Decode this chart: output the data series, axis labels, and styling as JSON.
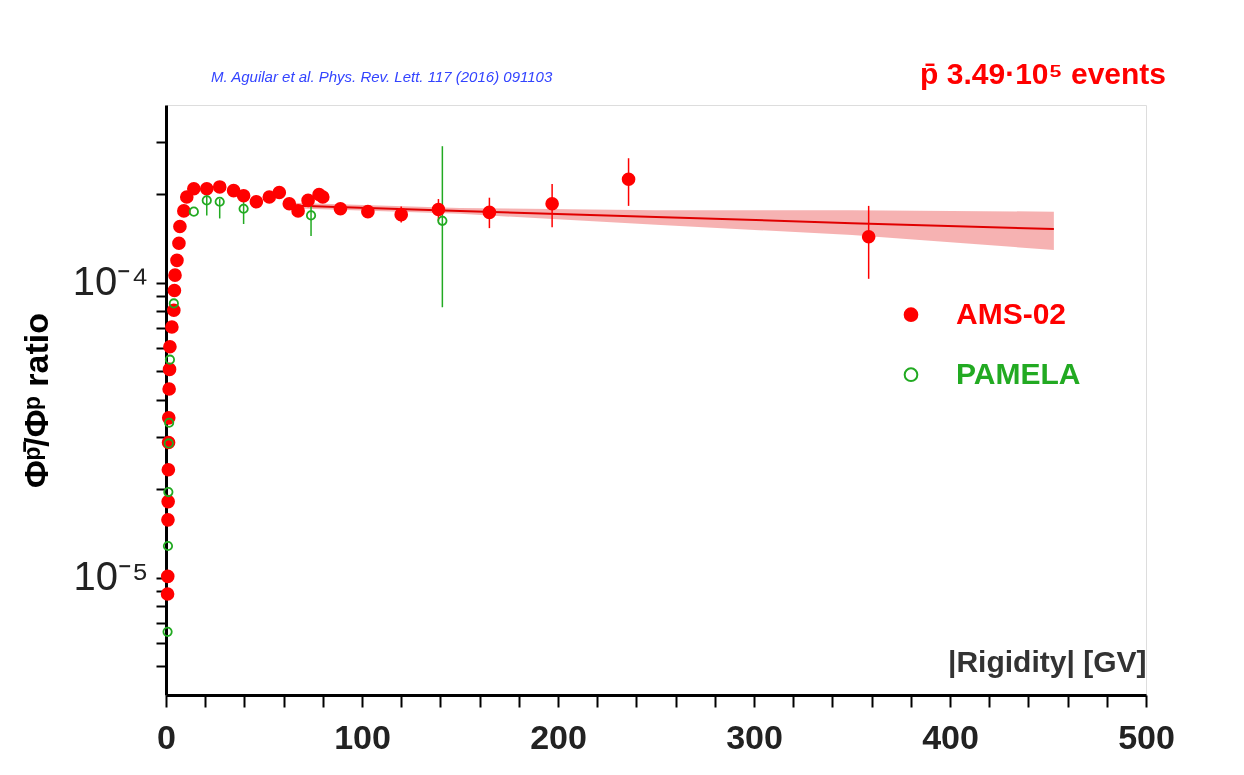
{
  "chart_data": {
    "type": "scatter",
    "xlabel": "|Rigidity| [GV]",
    "ylabel": "Φᵖ̄/Φᵖ ratio",
    "annotations": [
      "M. Aguilar et al. Phys. Rev. Lett. 117 (2016) 091103",
      "p̄  3.49·10⁵ events"
    ],
    "xlim": [
      0,
      500
    ],
    "xticks": [
      0,
      {
        "value": 20,
        "label": null
      },
      {
        "value": 40,
        "label": null
      },
      {
        "value": 60,
        "label": null
      },
      {
        "value": 80,
        "label": null
      },
      100,
      {
        "value": 120,
        "label": null
      },
      {
        "value": 140,
        "label": null
      },
      {
        "value": 160,
        "label": null
      },
      {
        "value": 180,
        "label": null
      },
      200,
      {
        "value": 220,
        "label": null
      },
      {
        "value": 240,
        "label": null
      },
      {
        "value": 260,
        "label": null
      },
      {
        "value": 280,
        "label": null
      },
      300,
      {
        "value": 320,
        "label": null
      },
      {
        "value": 340,
        "label": null
      },
      {
        "value": 360,
        "label": null
      },
      {
        "value": 380,
        "label": null
      },
      400,
      {
        "value": 420,
        "label": null
      },
      {
        "value": 440,
        "label": null
      },
      {
        "value": 460,
        "label": null
      },
      {
        "value": 480,
        "label": null
      },
      500
    ],
    "ylim": [
      4e-06,
      0.0004
    ],
    "yticks": [
      {
        "value": 5e-06,
        "label": null
      },
      {
        "value": 6e-06,
        "label": null
      },
      {
        "value": 7e-06,
        "label": null
      },
      {
        "value": 8e-06,
        "label": null
      },
      {
        "value": 9e-06,
        "label": null
      },
      {
        "value": 1e-05,
        "label": "10⁻⁵"
      },
      {
        "value": 2e-05,
        "label": null
      },
      {
        "value": 3e-05,
        "label": null
      },
      {
        "value": 4e-05,
        "label": null
      },
      {
        "value": 5e-05,
        "label": null
      },
      {
        "value": 6e-05,
        "label": null
      },
      {
        "value": 7e-05,
        "label": null
      },
      {
        "value": 8e-05,
        "label": null
      },
      {
        "value": 9e-05,
        "label": null
      },
      {
        "value": 0.0001,
        "label": "10⁻⁴"
      },
      {
        "value": 0.0002,
        "label": null
      },
      {
        "value": 0.0003,
        "label": null
      }
    ],
    "log": "y",
    "legend": "right",
    "series": [
      {
        "name": "AMS-02",
        "marker": "circle",
        "color": "#ff0000",
        "x": [
          0.8,
          0.9,
          1.0,
          1.1,
          1.2,
          1.3,
          1.4,
          1.6,
          1.8,
          2.0,
          3.0,
          4.0,
          4.3,
          4.6,
          5.6,
          6.6,
          7.1,
          9.1,
          10.6,
          14.2,
          20.8,
          27.4,
          34.5,
          39.6,
          46.1,
          52.7,
          57.8,
          62.9,
          67.4,
          72.5,
          78.1,
          80,
          89,
          103,
          120,
          139,
          165,
          197,
          236,
          358.5
        ],
        "values": [
          8.8e-06,
          1.01e-05,
          1.57e-05,
          1.81e-05,
          2.32e-05,
          2.87e-05,
          3.48e-05,
          4.36e-05,
          5.08e-05,
          6.06e-05,
          7.07e-05,
          8.06e-05,
          9.4e-05,
          0.000106,
          0.000119,
          0.000136,
          0.000155,
          0.000175,
          0.000195,
          0.000208,
          0.000208,
          0.000211,
          0.000205,
          0.000197,
          0.000188,
          0.000195,
          0.000202,
          0.000185,
          0.000175,
          0.00019,
          0.000199,
          0.000195,
          0.000178,
          0.000174,
          0.00017,
          0.000177,
          0.000173,
          0.000185,
          0.000224,
          0.000143
        ],
        "errors": [
          null,
          null,
          null,
          null,
          null,
          null,
          null,
          null,
          null,
          null,
          null,
          null,
          null,
          null,
          null,
          null,
          null,
          null,
          null,
          null,
          null,
          null,
          null,
          null,
          null,
          null,
          null,
          null,
          null,
          null,
          null,
          null,
          null,
          [
            0.000166,
            0.000182
          ],
          [
            0.00016,
            0.000181
          ],
          [
            0.000162,
            0.000192
          ],
          [
            0.000153,
            0.000194
          ],
          [
            0.000154,
            0.000216
          ],
          [
            0.000182,
            0.000264
          ],
          [
            0.000103,
            0.000182
          ]
        ]
      },
      {
        "name": "PAMELA",
        "marker": "circle",
        "color": "#22aa22",
        "x": [
          0.8,
          1.0,
          1.2,
          1.4,
          1.6,
          2.0,
          4.0,
          14.2,
          20.8,
          27.4,
          39.6,
          74,
          141
        ],
        "values": [
          6.55e-06,
          1.28e-05,
          1.95e-05,
          2.85e-05,
          3.35e-05,
          5.48e-05,
          8.5e-05,
          0.000174,
          0.00019,
          0.000188,
          0.000178,
          0.000169,
          0.000162
        ],
        "errors": [
          null,
          null,
          null,
          null,
          null,
          null,
          null,
          null,
          [
            0.000169,
            0.0002
          ],
          [
            0.000165,
            0.000192
          ],
          [
            0.000158,
            0.000189
          ],
          [
            0.000144,
            0.000192
          ],
          [
            8.25e-05,
            0.00029
          ]
        ]
      },
      {
        "type": "line",
        "color": "#e00000",
        "x": [
          60,
          150,
          250,
          350,
          453
        ],
        "values": [
          0.000183,
          0.000175,
          0.000167,
          0.000159,
          0.000152
        ],
        "lower": [
          0.000179,
          0.000171,
          0.000157,
          0.000145,
          0.000129
        ],
        "upper": [
          0.000187,
          0.000179,
          0.000176,
          0.000176,
          0.000174
        ]
      }
    ]
  }
}
